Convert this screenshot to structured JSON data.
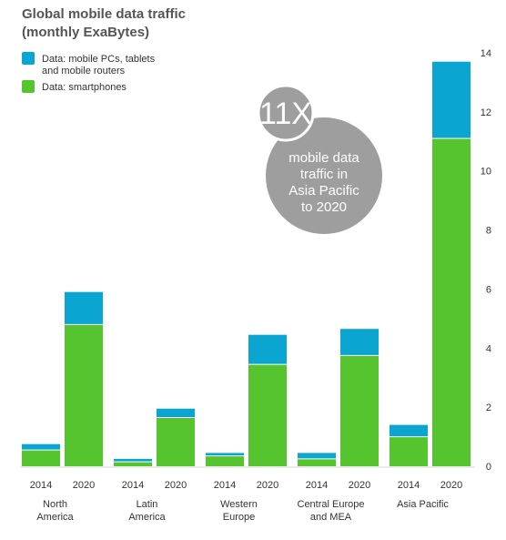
{
  "chart_data": {
    "type": "bar",
    "stacked": true,
    "title_lines": [
      "Global mobile data traffic",
      "(monthly ExaBytes)"
    ],
    "legend": [
      {
        "lines": [
          "Data: mobile PCs, tablets",
          "and mobile routers"
        ],
        "color": "#0aa5d0"
      },
      {
        "lines": [
          "Data: smartphones"
        ],
        "color": "#56c42e"
      }
    ],
    "groups": [
      {
        "region_lines": [
          "North",
          "America"
        ],
        "years": [
          "2014",
          "2020"
        ]
      },
      {
        "region_lines": [
          "Latin",
          "America"
        ],
        "years": [
          "2014",
          "2020"
        ]
      },
      {
        "region_lines": [
          "Western",
          "Europe"
        ],
        "years": [
          "2014",
          "2020"
        ]
      },
      {
        "region_lines": [
          "Central Europe",
          "and MEA"
        ],
        "years": [
          "2014",
          "2020"
        ]
      },
      {
        "region_lines": [
          "Asia Pacific"
        ],
        "years": [
          "2014",
          "2020"
        ]
      }
    ],
    "series": [
      {
        "key": "smartphones",
        "color": "#56c42e",
        "values": [
          0.55,
          4.8,
          0.15,
          1.65,
          0.35,
          3.45,
          0.25,
          3.75,
          1.0,
          11.1
        ]
      },
      {
        "key": "pcs",
        "color": "#0aa5d0",
        "values": [
          0.2,
          1.1,
          0.1,
          0.3,
          0.1,
          1.0,
          0.2,
          0.9,
          0.4,
          2.6
        ]
      }
    ],
    "ylim": [
      0,
      14
    ],
    "yticks": [
      0,
      2,
      4,
      6,
      8,
      10,
      12,
      14
    ],
    "y_axis_side": "right",
    "grid": false,
    "callout": {
      "big": "11X",
      "lines": [
        "mobile data",
        "traffic in",
        "Asia Pacific",
        "to 2020"
      ],
      "color": "#9e9e9e"
    }
  }
}
